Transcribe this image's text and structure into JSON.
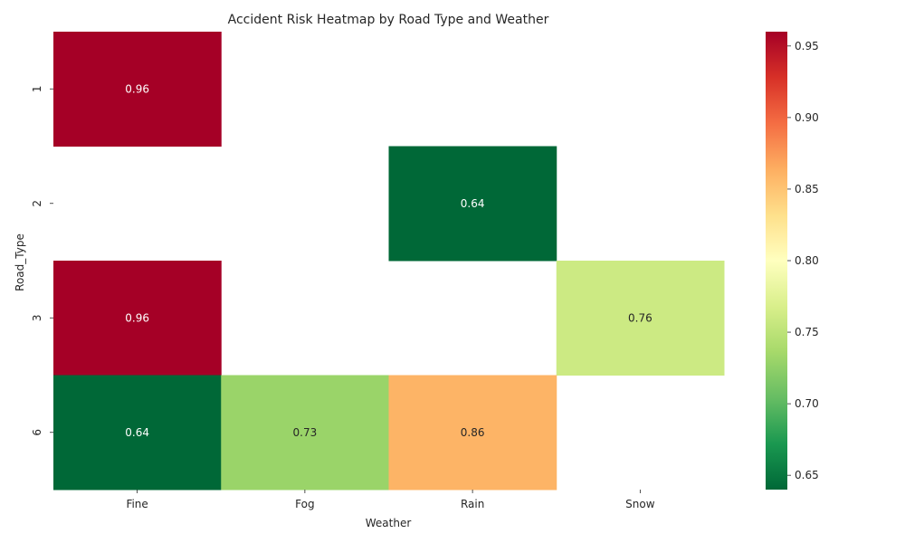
{
  "chart_data": {
    "type": "heatmap",
    "title": "Accident Risk Heatmap by Road Type and Weather",
    "xlabel": "Weather",
    "ylabel": "Road_Type",
    "x_categories": [
      "Fine",
      "Fog",
      "Rain",
      "Snow"
    ],
    "y_categories": [
      "1",
      "2",
      "3",
      "6"
    ],
    "values": [
      [
        0.96,
        null,
        null,
        null
      ],
      [
        null,
        null,
        0.64,
        null
      ],
      [
        0.96,
        null,
        null,
        0.76
      ],
      [
        0.64,
        0.73,
        0.86,
        null
      ]
    ],
    "cell_labels": [
      [
        "0.96",
        "",
        "",
        ""
      ],
      [
        "",
        "",
        "0.64",
        ""
      ],
      [
        "0.96",
        "",
        "",
        "0.76"
      ],
      [
        "0.64",
        "0.73",
        "0.86",
        ""
      ]
    ],
    "colormap": "RdYlGn_r",
    "vmin": 0.64,
    "vmax": 0.96,
    "colorbar_ticks": [
      "0.65",
      "0.70",
      "0.75",
      "0.80",
      "0.85",
      "0.90",
      "0.95"
    ],
    "colorbar_tick_values": [
      0.65,
      0.7,
      0.75,
      0.8,
      0.85,
      0.9,
      0.95
    ],
    "grid": false,
    "legend": "colorbar-right"
  }
}
